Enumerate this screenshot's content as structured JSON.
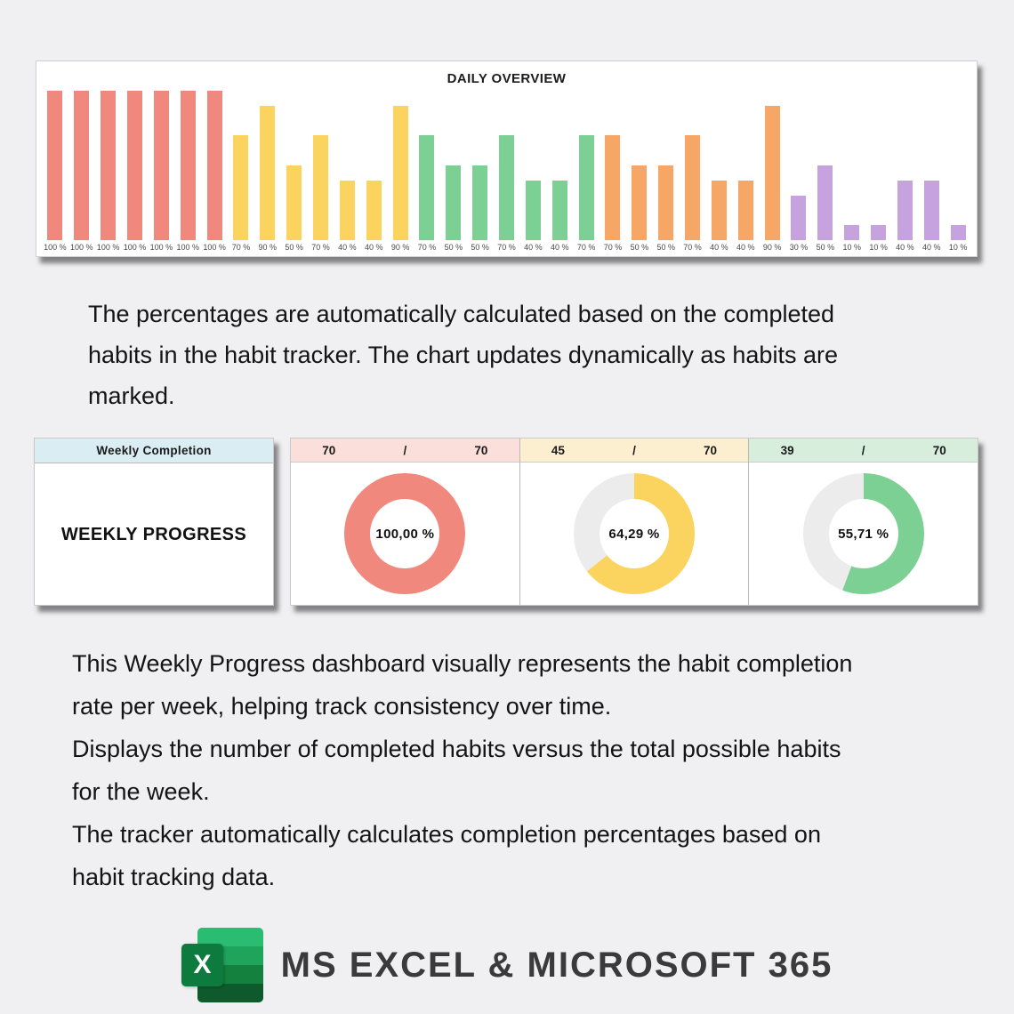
{
  "colors": {
    "page_bg": "#f0f0f2",
    "salmon": "#f0887e",
    "yellow": "#fad45e",
    "green": "#7dd093",
    "orange": "#f6a765",
    "purple": "#c6a3de",
    "donut_track": "#ececec",
    "weekly_header_bg": "#d9edf3",
    "excel_tile_green": "#0d7a3e",
    "excel_sheet_greens": [
      "#2abd72",
      "#1fa45c",
      "#15813f",
      "#0e5a2d"
    ]
  },
  "daily_overview": {
    "title": "DAILY OVERVIEW",
    "bars": [
      {
        "label": "100 %",
        "value": 100,
        "color": "#f0887e"
      },
      {
        "label": "100 %",
        "value": 100,
        "color": "#f0887e"
      },
      {
        "label": "100 %",
        "value": 100,
        "color": "#f0887e"
      },
      {
        "label": "100 %",
        "value": 100,
        "color": "#f0887e"
      },
      {
        "label": "100 %",
        "value": 100,
        "color": "#f0887e"
      },
      {
        "label": "100 %",
        "value": 100,
        "color": "#f0887e"
      },
      {
        "label": "100 %",
        "value": 100,
        "color": "#f0887e"
      },
      {
        "label": "70 %",
        "value": 70,
        "color": "#fad45e"
      },
      {
        "label": "90 %",
        "value": 90,
        "color": "#fad45e"
      },
      {
        "label": "50 %",
        "value": 50,
        "color": "#fad45e"
      },
      {
        "label": "70 %",
        "value": 70,
        "color": "#fad45e"
      },
      {
        "label": "40 %",
        "value": 40,
        "color": "#fad45e"
      },
      {
        "label": "40 %",
        "value": 40,
        "color": "#fad45e"
      },
      {
        "label": "90 %",
        "value": 90,
        "color": "#fad45e"
      },
      {
        "label": "70 %",
        "value": 70,
        "color": "#7dd093"
      },
      {
        "label": "50 %",
        "value": 50,
        "color": "#7dd093"
      },
      {
        "label": "50 %",
        "value": 50,
        "color": "#7dd093"
      },
      {
        "label": "70 %",
        "value": 70,
        "color": "#7dd093"
      },
      {
        "label": "40 %",
        "value": 40,
        "color": "#7dd093"
      },
      {
        "label": "40 %",
        "value": 40,
        "color": "#7dd093"
      },
      {
        "label": "70 %",
        "value": 70,
        "color": "#7dd093"
      },
      {
        "label": "70 %",
        "value": 70,
        "color": "#f6a765"
      },
      {
        "label": "50 %",
        "value": 50,
        "color": "#f6a765"
      },
      {
        "label": "50 %",
        "value": 50,
        "color": "#f6a765"
      },
      {
        "label": "70 %",
        "value": 70,
        "color": "#f6a765"
      },
      {
        "label": "40 %",
        "value": 40,
        "color": "#f6a765"
      },
      {
        "label": "40 %",
        "value": 40,
        "color": "#f6a765"
      },
      {
        "label": "90 %",
        "value": 90,
        "color": "#f6a765"
      },
      {
        "label": "30 %",
        "value": 30,
        "color": "#c6a3de"
      },
      {
        "label": "50 %",
        "value": 50,
        "color": "#c6a3de"
      },
      {
        "label": "10 %",
        "value": 10,
        "color": "#c6a3de"
      },
      {
        "label": "10 %",
        "value": 10,
        "color": "#c6a3de"
      },
      {
        "label": "40 %",
        "value": 40,
        "color": "#c6a3de"
      },
      {
        "label": "40 %",
        "value": 40,
        "color": "#c6a3de"
      },
      {
        "label": "10 %",
        "value": 10,
        "color": "#c6a3de"
      }
    ]
  },
  "intro_paragraph": {
    "lines": [
      "The percentages are automatically calculated based on the completed",
      "habits in the habit tracker. The chart updates dynamically as habits are",
      "marked."
    ]
  },
  "weekly_progress": {
    "table_header": "Weekly Completion",
    "table_label": "WEEKLY PROGRESS",
    "panels": [
      {
        "completed": "70",
        "separator": "/",
        "total": "70",
        "percent": 100,
        "percent_label": "100,00 %",
        "ring_color": "#f0887e",
        "header_bg": "#fbdfdb"
      },
      {
        "completed": "45",
        "separator": "/",
        "total": "70",
        "percent": 64.29,
        "percent_label": "64,29 %",
        "ring_color": "#fad45e",
        "header_bg": "#fcefd0"
      },
      {
        "completed": "39",
        "separator": "/",
        "total": "70",
        "percent": 55.71,
        "percent_label": "55,71 %",
        "ring_color": "#7dd093",
        "header_bg": "#d8eedd"
      }
    ]
  },
  "description_paragraph": {
    "lines": [
      "This Weekly Progress dashboard visually represents the habit completion",
      "rate per week, helping track consistency over time.",
      "Displays the number of completed habits versus the total possible habits",
      "for the week.",
      "The tracker automatically calculates completion percentages based on",
      "habit tracking data."
    ]
  },
  "footer": {
    "brand": "MS EXCEL & MICROSOFT 365",
    "logo_letter": "X"
  },
  "chart_data": [
    {
      "type": "bar",
      "title": "DAILY OVERVIEW",
      "values": [
        100,
        100,
        100,
        100,
        100,
        100,
        100,
        70,
        90,
        50,
        70,
        40,
        40,
        90,
        70,
        50,
        50,
        70,
        40,
        40,
        70,
        70,
        50,
        50,
        70,
        40,
        40,
        90,
        30,
        50,
        10,
        10,
        40,
        40,
        10
      ],
      "data_labels": [
        "100 %",
        "100 %",
        "100 %",
        "100 %",
        "100 %",
        "100 %",
        "100 %",
        "70 %",
        "90 %",
        "50 %",
        "70 %",
        "40 %",
        "40 %",
        "90 %",
        "70 %",
        "50 %",
        "50 %",
        "70 %",
        "40 %",
        "40 %",
        "70 %",
        "70 %",
        "50 %",
        "50 %",
        "70 %",
        "40 %",
        "40 %",
        "90 %",
        "30 %",
        "50 %",
        "10 %",
        "10 %",
        "40 %",
        "40 %",
        "10 %"
      ],
      "color_groups": [
        {
          "color": "#f0887e",
          "bars": 7
        },
        {
          "color": "#fad45e",
          "bars": 7
        },
        {
          "color": "#7dd093",
          "bars": 7
        },
        {
          "color": "#f6a765",
          "bars": 7
        },
        {
          "color": "#c6a3de",
          "bars": 7
        }
      ],
      "ylim": [
        0,
        100
      ],
      "grid": false,
      "legend": false,
      "xlabel": "",
      "ylabel": ""
    },
    {
      "type": "pie",
      "subtype": "donut",
      "title": "WEEKLY PROGRESS",
      "donuts": [
        {
          "completed": 70,
          "total": 70,
          "percent": 100.0,
          "center_label": "100,00 %",
          "color": "#f0887e"
        },
        {
          "completed": 45,
          "total": 70,
          "percent": 64.29,
          "center_label": "64,29 %",
          "color": "#fad45e"
        },
        {
          "completed": 39,
          "total": 70,
          "percent": 55.71,
          "center_label": "55,71 %",
          "color": "#7dd093"
        }
      ],
      "track_color": "#ececec",
      "legend": false
    }
  ]
}
